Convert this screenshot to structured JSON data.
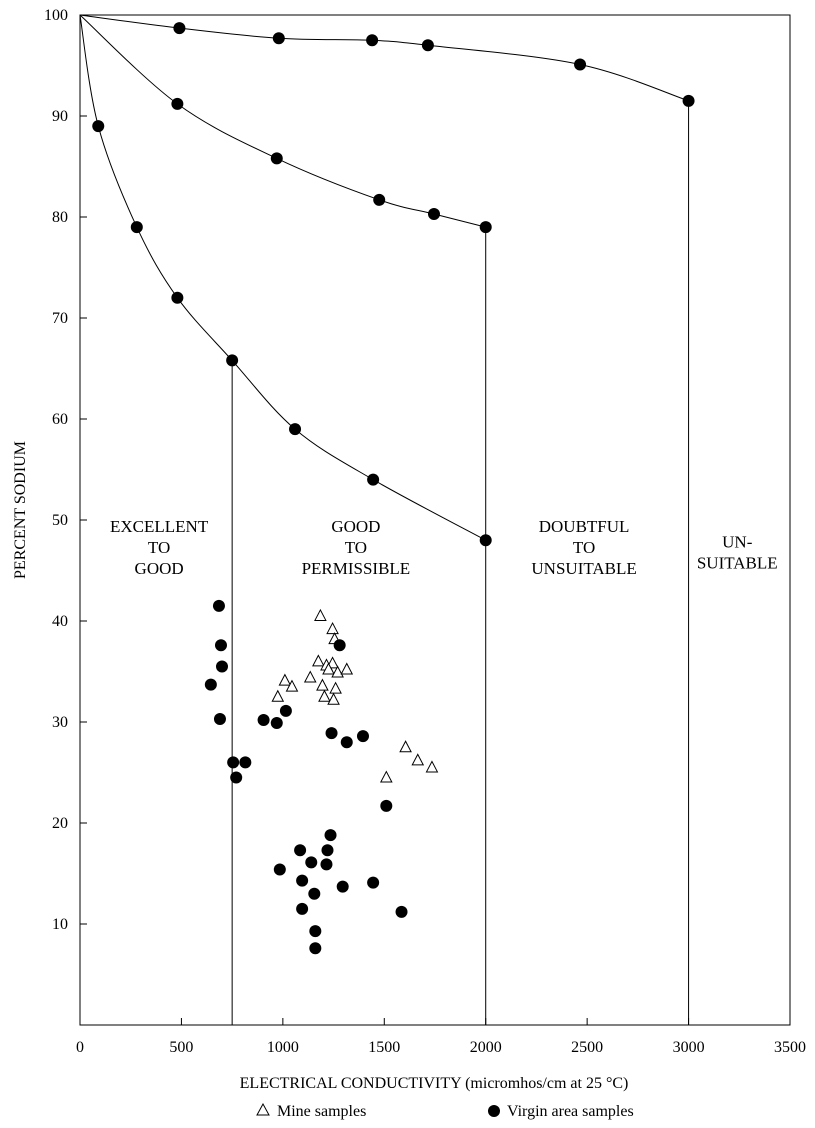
{
  "chart_data": {
    "type": "scatter",
    "xlabel": "ELECTRICAL CONDUCTIVITY (micromhos/cm at 25 °C)",
    "ylabel": "PERCENT SODIUM",
    "xlim": [
      0,
      3500
    ],
    "ylim": [
      0,
      100
    ],
    "x_ticks": [
      0,
      500,
      1000,
      1500,
      2000,
      2500,
      3000,
      3500
    ],
    "y_ticks": [
      10,
      20,
      30,
      40,
      50,
      60,
      70,
      80,
      90,
      100
    ],
    "grid": false,
    "legend_position": "bottom",
    "series": [
      {
        "name": "Mine samples",
        "marker": "open-triangle",
        "points": [
          [
            1185,
            40.5
          ],
          [
            1245,
            39.2
          ],
          [
            1255,
            38.2
          ],
          [
            1175,
            36
          ],
          [
            1215,
            35.6
          ],
          [
            1245,
            35.8
          ],
          [
            1225,
            35.2
          ],
          [
            1270,
            34.9
          ],
          [
            1315,
            35.2
          ],
          [
            1135,
            34.4
          ],
          [
            1010,
            34.1
          ],
          [
            1045,
            33.5
          ],
          [
            1195,
            33.6
          ],
          [
            1260,
            33.3
          ],
          [
            975,
            32.5
          ],
          [
            1205,
            32.5
          ],
          [
            1250,
            32.2
          ],
          [
            1605,
            27.5
          ],
          [
            1665,
            26.2
          ],
          [
            1735,
            25.5
          ],
          [
            1510,
            24.5
          ]
        ]
      },
      {
        "name": "Virgin area samples",
        "marker": "filled-circle",
        "points": [
          [
            685,
            41.5
          ],
          [
            695,
            37.6
          ],
          [
            700,
            35.5
          ],
          [
            645,
            33.7
          ],
          [
            690,
            30.3
          ],
          [
            1280,
            37.6
          ],
          [
            1015,
            31.1
          ],
          [
            905,
            30.2
          ],
          [
            970,
            29.9
          ],
          [
            1240,
            28.9
          ],
          [
            1315,
            28
          ],
          [
            1395,
            28.6
          ],
          [
            755,
            26
          ],
          [
            815,
            26
          ],
          [
            770,
            24.5
          ],
          [
            1510,
            21.7
          ],
          [
            1235,
            18.8
          ],
          [
            1085,
            17.3
          ],
          [
            1220,
            17.3
          ],
          [
            1140,
            16.1
          ],
          [
            1215,
            15.9
          ],
          [
            985,
            15.4
          ],
          [
            1095,
            14.3
          ],
          [
            1445,
            14.1
          ],
          [
            1155,
            13
          ],
          [
            1295,
            13.7
          ],
          [
            1095,
            11.5
          ],
          [
            1585,
            11.2
          ],
          [
            1160,
            9.3
          ],
          [
            1160,
            7.6
          ]
        ]
      }
    ],
    "boundary_curves": [
      {
        "points": [
          [
            0,
            100
          ],
          [
            490,
            98.7
          ],
          [
            980,
            97.7
          ],
          [
            1440,
            97.5
          ],
          [
            1715,
            97
          ],
          [
            2465,
            95.1
          ],
          [
            3000,
            91.5
          ]
        ],
        "drop_at_x": 3000
      },
      {
        "points": [
          [
            0,
            100
          ],
          [
            480,
            91.2
          ],
          [
            970,
            85.8
          ],
          [
            1475,
            81.7
          ],
          [
            1745,
            80.3
          ],
          [
            2000,
            79
          ]
        ],
        "drop_at_x": 2000
      },
      {
        "points": [
          [
            0,
            100
          ],
          [
            90,
            89
          ],
          [
            280,
            79
          ],
          [
            480,
            72
          ],
          [
            750,
            65.8
          ],
          [
            1060,
            59
          ],
          [
            1445,
            54
          ],
          [
            2000,
            48
          ]
        ],
        "drop_at_x": 750
      }
    ],
    "zones": [
      {
        "lines": [
          "EXCELLENT",
          "TO",
          "GOOD"
        ],
        "x": 390,
        "y": 48
      },
      {
        "lines": [
          "GOOD",
          "TO",
          "PERMISSIBLE"
        ],
        "x": 1360,
        "y": 48
      },
      {
        "lines": [
          "DOUBTFUL",
          "TO",
          "UNSUITABLE"
        ],
        "x": 2485,
        "y": 48
      },
      {
        "lines": [
          "UN-",
          "SUITABLE"
        ],
        "x": 3240,
        "y": 46.5
      }
    ]
  }
}
